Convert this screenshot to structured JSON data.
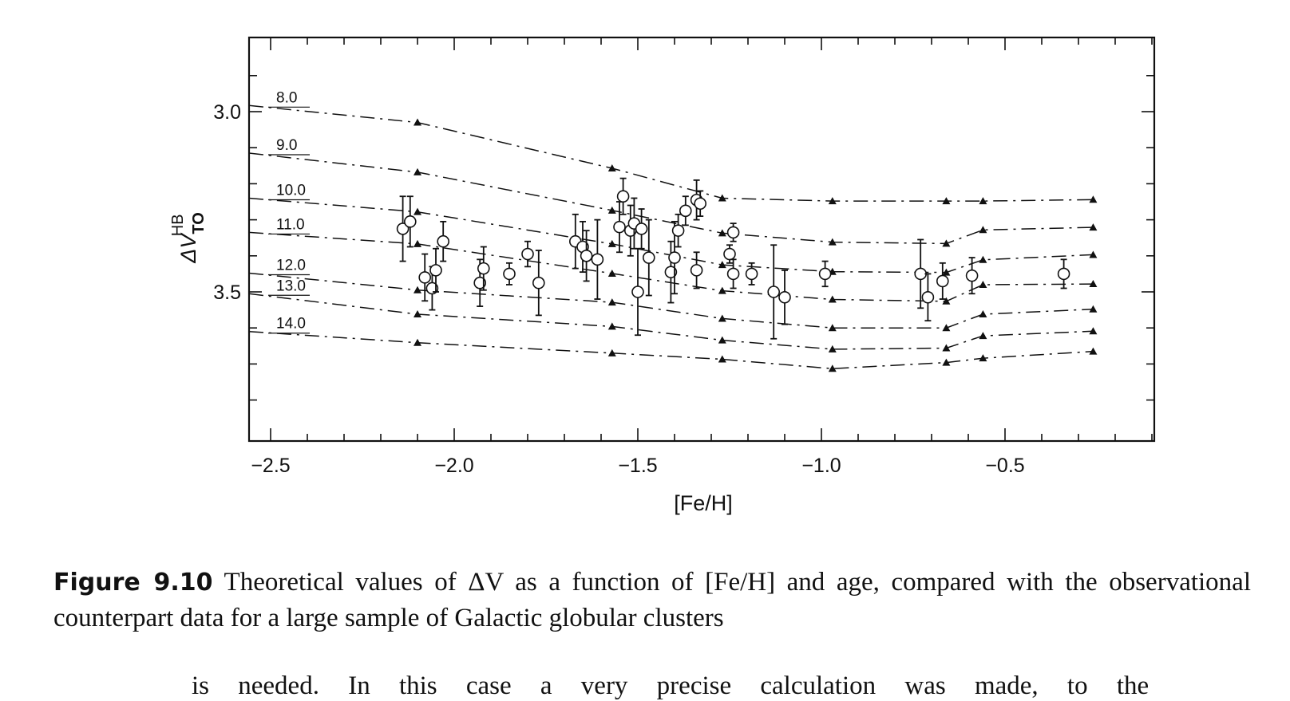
{
  "chart_data": {
    "type": "line",
    "xlabel": "[Fe/H]",
    "ylabel_main": "ΔV",
    "ylabel_sup": "HB",
    "ylabel_sub": "TO",
    "xlim": [
      -2.56,
      -0.1
    ],
    "ylim": [
      3.8,
      2.9
    ],
    "y_inverted": true,
    "x_ticks": [
      -2.5,
      -2.0,
      -1.5,
      -1.0,
      -0.5
    ],
    "x_tick_labels": [
      "−2.5",
      "−2.0",
      "−1.5",
      "−1.0",
      "−0.5"
    ],
    "y_ticks": [
      3.0,
      3.5
    ],
    "y_tick_labels": [
      "3.0",
      "3.5"
    ],
    "grid": false,
    "model_x": [
      -2.1,
      -1.57,
      -1.27,
      -0.97,
      -0.66,
      -0.56,
      -0.26
    ],
    "series": [
      {
        "name": "8.0",
        "label_y": 2.983,
        "values": [
          3.03,
          3.157,
          3.24,
          3.248,
          3.248,
          3.248,
          3.244
        ]
      },
      {
        "name": "9.0",
        "label_y": 3.115,
        "values": [
          3.168,
          3.274,
          3.337,
          3.362,
          3.366,
          3.328,
          3.321
        ]
      },
      {
        "name": "10.0",
        "label_y": 3.24,
        "values": [
          3.278,
          3.367,
          3.425,
          3.444,
          3.446,
          3.411,
          3.397
        ]
      },
      {
        "name": "11.0",
        "label_y": 3.335,
        "values": [
          3.367,
          3.449,
          3.497,
          3.521,
          3.526,
          3.48,
          3.478
        ]
      },
      {
        "name": "12.0",
        "label_y": 3.448,
        "values": [
          3.495,
          3.529,
          3.574,
          3.6,
          3.6,
          3.562,
          3.548
        ]
      },
      {
        "name": "13.0",
        "label_y": 3.505,
        "values": [
          3.562,
          3.596,
          3.634,
          3.659,
          3.656,
          3.622,
          3.609
        ]
      },
      {
        "name": "14.0",
        "label_y": 3.61,
        "values": [
          3.641,
          3.67,
          3.687,
          3.713,
          3.696,
          3.684,
          3.665
        ]
      }
    ],
    "observations": [
      {
        "x": -2.14,
        "y": 3.325,
        "err": 0.09
      },
      {
        "x": -2.12,
        "y": 3.305,
        "err": 0.07
      },
      {
        "x": -2.08,
        "y": 3.46,
        "err": 0.065
      },
      {
        "x": -2.06,
        "y": 3.49,
        "err": 0.06
      },
      {
        "x": -2.05,
        "y": 3.44,
        "err": 0.06
      },
      {
        "x": -2.03,
        "y": 3.36,
        "err": 0.055
      },
      {
        "x": -1.93,
        "y": 3.475,
        "err": 0.065
      },
      {
        "x": -1.92,
        "y": 3.435,
        "err": 0.06
      },
      {
        "x": -1.85,
        "y": 3.45,
        "err": 0.03
      },
      {
        "x": -1.8,
        "y": 3.395,
        "err": 0.035
      },
      {
        "x": -1.77,
        "y": 3.475,
        "err": 0.09
      },
      {
        "x": -1.67,
        "y": 3.36,
        "err": 0.075
      },
      {
        "x": -1.65,
        "y": 3.375,
        "err": 0.07
      },
      {
        "x": -1.64,
        "y": 3.4,
        "err": 0.07
      },
      {
        "x": -1.61,
        "y": 3.41,
        "err": 0.11
      },
      {
        "x": -1.55,
        "y": 3.32,
        "err": 0.07
      },
      {
        "x": -1.54,
        "y": 3.235,
        "err": 0.05
      },
      {
        "x": -1.52,
        "y": 3.33,
        "err": 0.07
      },
      {
        "x": -1.51,
        "y": 3.31,
        "err": 0.07
      },
      {
        "x": -1.5,
        "y": 3.5,
        "err": 0.12
      },
      {
        "x": -1.49,
        "y": 3.325,
        "err": 0.055
      },
      {
        "x": -1.47,
        "y": 3.405,
        "err": 0.105
      },
      {
        "x": -1.41,
        "y": 3.445,
        "err": 0.085
      },
      {
        "x": -1.4,
        "y": 3.405,
        "err": 0.1
      },
      {
        "x": -1.39,
        "y": 3.33,
        "err": 0.045
      },
      {
        "x": -1.37,
        "y": 3.275,
        "err": 0.04
      },
      {
        "x": -1.34,
        "y": 3.44,
        "err": 0.05
      },
      {
        "x": -1.34,
        "y": 3.245,
        "err": 0.055
      },
      {
        "x": -1.33,
        "y": 3.255,
        "err": 0.035
      },
      {
        "x": -1.25,
        "y": 3.395,
        "err": 0.025
      },
      {
        "x": -1.24,
        "y": 3.335,
        "err": 0.025
      },
      {
        "x": -1.24,
        "y": 3.45,
        "err": 0.04
      },
      {
        "x": -1.19,
        "y": 3.45,
        "err": 0.03
      },
      {
        "x": -1.13,
        "y": 3.5,
        "err": 0.13
      },
      {
        "x": -1.1,
        "y": 3.515,
        "err": 0.075
      },
      {
        "x": -0.99,
        "y": 3.45,
        "err": 0.035
      },
      {
        "x": -0.73,
        "y": 3.45,
        "err": 0.095
      },
      {
        "x": -0.71,
        "y": 3.515,
        "err": 0.065
      },
      {
        "x": -0.67,
        "y": 3.47,
        "err": 0.05
      },
      {
        "x": -0.59,
        "y": 3.455,
        "err": 0.05
      },
      {
        "x": -0.34,
        "y": 3.45,
        "err": 0.04
      }
    ]
  },
  "caption": {
    "figure_number": "Figure 9.10",
    "text": "Theoretical values of ΔV as a function of [Fe/H] and age, compared with the observational counterpart data for a large sample of Galactic globular clusters"
  },
  "bottom_text": "is needed. In this case a very precise calculation was made, to the"
}
